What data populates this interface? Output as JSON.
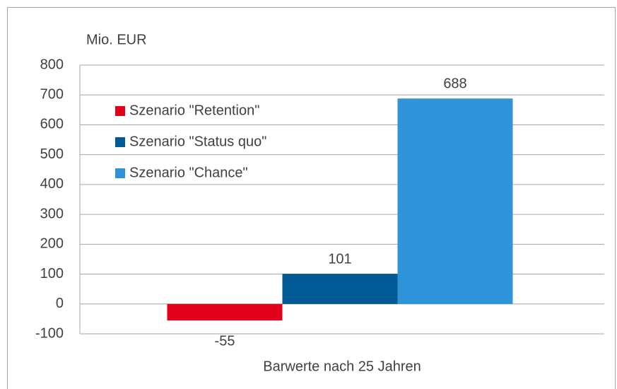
{
  "chart_data": {
    "type": "bar",
    "y_label": "Mio. EUR",
    "categories": [
      "Barwerte nach 25 Jahren"
    ],
    "series": [
      {
        "name": "Szenario \"Retention\"",
        "color": "#e2001a",
        "values": [
          -55
        ]
      },
      {
        "name": "Szenario \"Status quo\"",
        "color": "#005a96",
        "values": [
          101
        ]
      },
      {
        "name": "Szenario \"Chance\"",
        "color": "#2e93d9",
        "values": [
          688
        ]
      }
    ],
    "ylim": [
      -100,
      800
    ],
    "yticks": [
      -100,
      0,
      100,
      200,
      300,
      400,
      500,
      600,
      700,
      800
    ],
    "grid": true,
    "legend": "upper left"
  }
}
